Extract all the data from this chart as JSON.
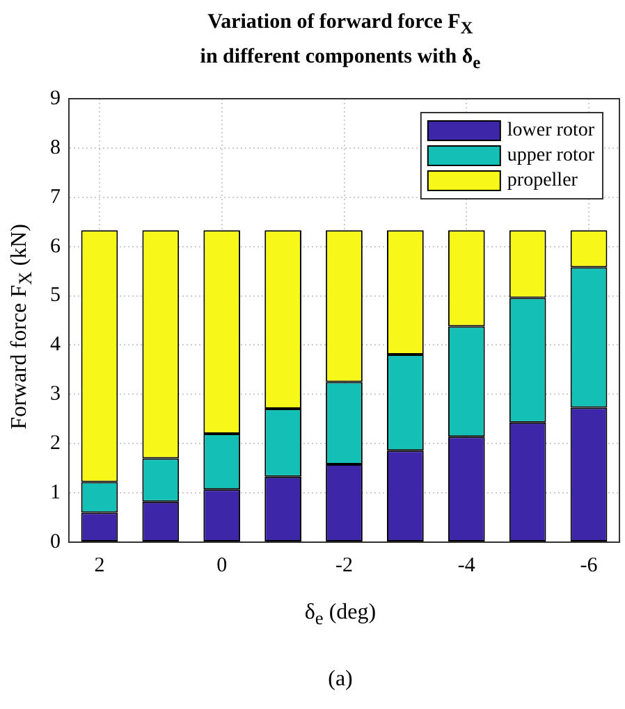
{
  "chart_data": {
    "type": "bar",
    "title": "Variation of forward force F$_{X}$\nin different components with δ$_{e}$",
    "xlabel": "δ$_{e}$ (deg)",
    "ylabel": "Forward force F$_{X}$ (kN)",
    "annotations": [
      "(a)"
    ],
    "categories": [
      "2",
      null,
      "0",
      null,
      "-2",
      null,
      "-4",
      null,
      "-6"
    ],
    "stacked": true,
    "series": [
      {
        "name": "lower rotor",
        "color": "#3d26a8",
        "values": [
          0.6,
          0.82,
          1.07,
          1.33,
          1.58,
          1.86,
          2.14,
          2.43,
          2.73
        ]
      },
      {
        "name": "upper rotor",
        "color": "#14bfb5",
        "values": [
          0.62,
          0.88,
          1.13,
          1.38,
          1.67,
          1.95,
          2.24,
          2.53,
          2.85
        ]
      },
      {
        "name": "propeller",
        "color": "#f7f719",
        "values": [
          5.11,
          4.63,
          4.13,
          3.62,
          3.08,
          2.52,
          1.95,
          1.37,
          0.75
        ]
      }
    ],
    "ylim": [
      0,
      9
    ],
    "yticks": [
      0,
      1,
      2,
      3,
      4,
      5,
      6,
      7,
      8,
      9
    ],
    "grid": true,
    "legend": "top right"
  }
}
